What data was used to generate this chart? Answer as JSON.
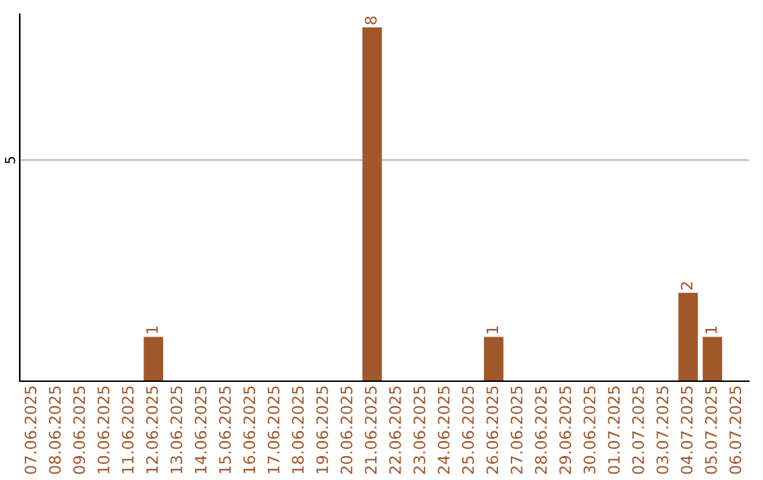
{
  "chart_data": {
    "type": "bar",
    "categories": [
      "07.06.2025",
      "08.06.2025",
      "09.06.2025",
      "10.06.2025",
      "11.06.2025",
      "12.06.2025",
      "13.06.2025",
      "14.06.2025",
      "15.06.2025",
      "16.06.2025",
      "17.06.2025",
      "18.06.2025",
      "19.06.2025",
      "20.06.2025",
      "21.06.2025",
      "22.06.2025",
      "23.06.2025",
      "24.06.2025",
      "25.06.2025",
      "26.06.2025",
      "27.06.2025",
      "28.06.2025",
      "29.06.2025",
      "30.06.2025",
      "01.07.2025",
      "02.07.2025",
      "03.07.2025",
      "04.07.2025",
      "05.07.2025",
      "06.07.2025"
    ],
    "values": [
      0,
      0,
      0,
      0,
      0,
      1,
      0,
      0,
      0,
      0,
      0,
      0,
      0,
      0,
      8,
      0,
      0,
      0,
      0,
      1,
      0,
      0,
      0,
      0,
      0,
      0,
      0,
      2,
      1,
      0
    ],
    "value_labels": [
      null,
      null,
      null,
      null,
      null,
      "1",
      null,
      null,
      null,
      null,
      null,
      null,
      null,
      null,
      "8",
      null,
      null,
      null,
      null,
      "1",
      null,
      null,
      null,
      null,
      null,
      null,
      null,
      "2",
      "1",
      null
    ],
    "color": "#a0572a",
    "ylim": [
      0,
      8.3
    ],
    "yticks": [
      5
    ],
    "grid": "y"
  }
}
